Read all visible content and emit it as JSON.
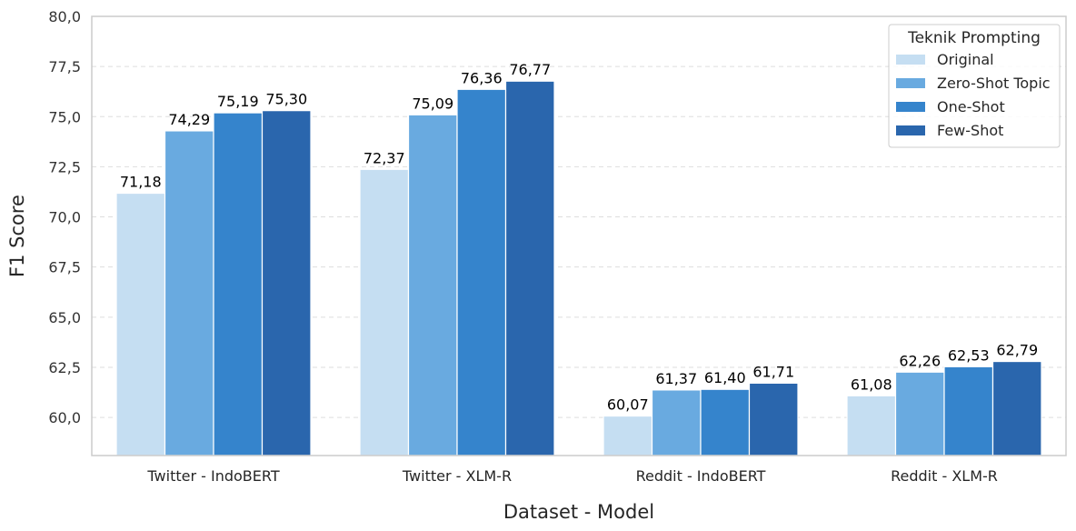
{
  "chart_data": {
    "type": "bar",
    "xlabel": "Dataset - Model",
    "ylabel": "F1 Score",
    "ylim": [
      58.1,
      80.0
    ],
    "yticks": [
      60.0,
      62.5,
      65.0,
      67.5,
      70.0,
      72.5,
      75.0,
      77.5,
      80.0
    ],
    "ytick_labels": [
      "60,0",
      "62,5",
      "65,0",
      "67,5",
      "70,0",
      "72,5",
      "75,0",
      "77,5",
      "80,0"
    ],
    "grid": true,
    "legend_title": "Teknik Prompting",
    "legend_position": "top-right",
    "categories": [
      "Twitter - IndoBERT",
      "Twitter - XLM-R",
      "Reddit - IndoBERT",
      "Reddit - XLM-R"
    ],
    "series": [
      {
        "name": "Original",
        "color": "#c5def2",
        "values": [
          71.18,
          72.37,
          60.07,
          61.08
        ],
        "labels": [
          "71,18",
          "72,37",
          "60,07",
          "61,08"
        ]
      },
      {
        "name": "Zero-Shot Topic",
        "color": "#69aae0",
        "values": [
          74.29,
          75.09,
          61.37,
          62.26
        ],
        "labels": [
          "74,29",
          "75,09",
          "61,37",
          "62,26"
        ]
      },
      {
        "name": "One-Shot",
        "color": "#3584cc",
        "values": [
          75.19,
          76.36,
          61.4,
          62.53
        ],
        "labels": [
          "75,19",
          "76,36",
          "61,40",
          "62,53"
        ]
      },
      {
        "name": "Few-Shot",
        "color": "#2a66ad",
        "values": [
          75.3,
          76.77,
          61.71,
          62.79
        ],
        "labels": [
          "75,30",
          "76,77",
          "61,71",
          "62,79"
        ]
      }
    ]
  }
}
